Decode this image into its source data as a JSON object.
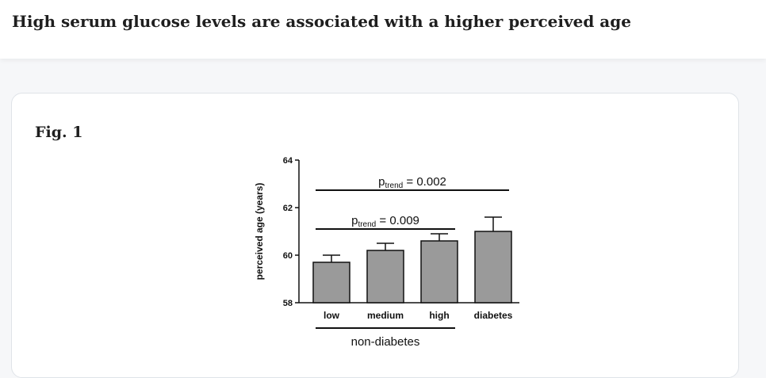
{
  "header": {
    "title": "High serum glucose levels are associated with a higher perceived age"
  },
  "figure": {
    "label": "Fig. 1"
  },
  "chart_data": {
    "type": "bar",
    "categories": [
      "low",
      "medium",
      "high",
      "diabetes"
    ],
    "values": [
      59.7,
      60.2,
      60.6,
      61.0
    ],
    "error_upper": [
      60.0,
      60.5,
      60.9,
      61.6
    ],
    "ylabel": "perceived age (years)",
    "xlabel": "",
    "ylim": [
      58,
      64
    ],
    "yticks": [
      58,
      60,
      62,
      64
    ],
    "group_label": "non-diabetes",
    "bar_color": "#9a9a9a",
    "annotations": [
      {
        "p": "p",
        "sub": "trend",
        "rest": " = 0.002",
        "from": "low",
        "to": "diabetes"
      },
      {
        "p": "p",
        "sub": "trend",
        "rest": " = 0.009",
        "from": "low",
        "to": "high"
      }
    ]
  }
}
